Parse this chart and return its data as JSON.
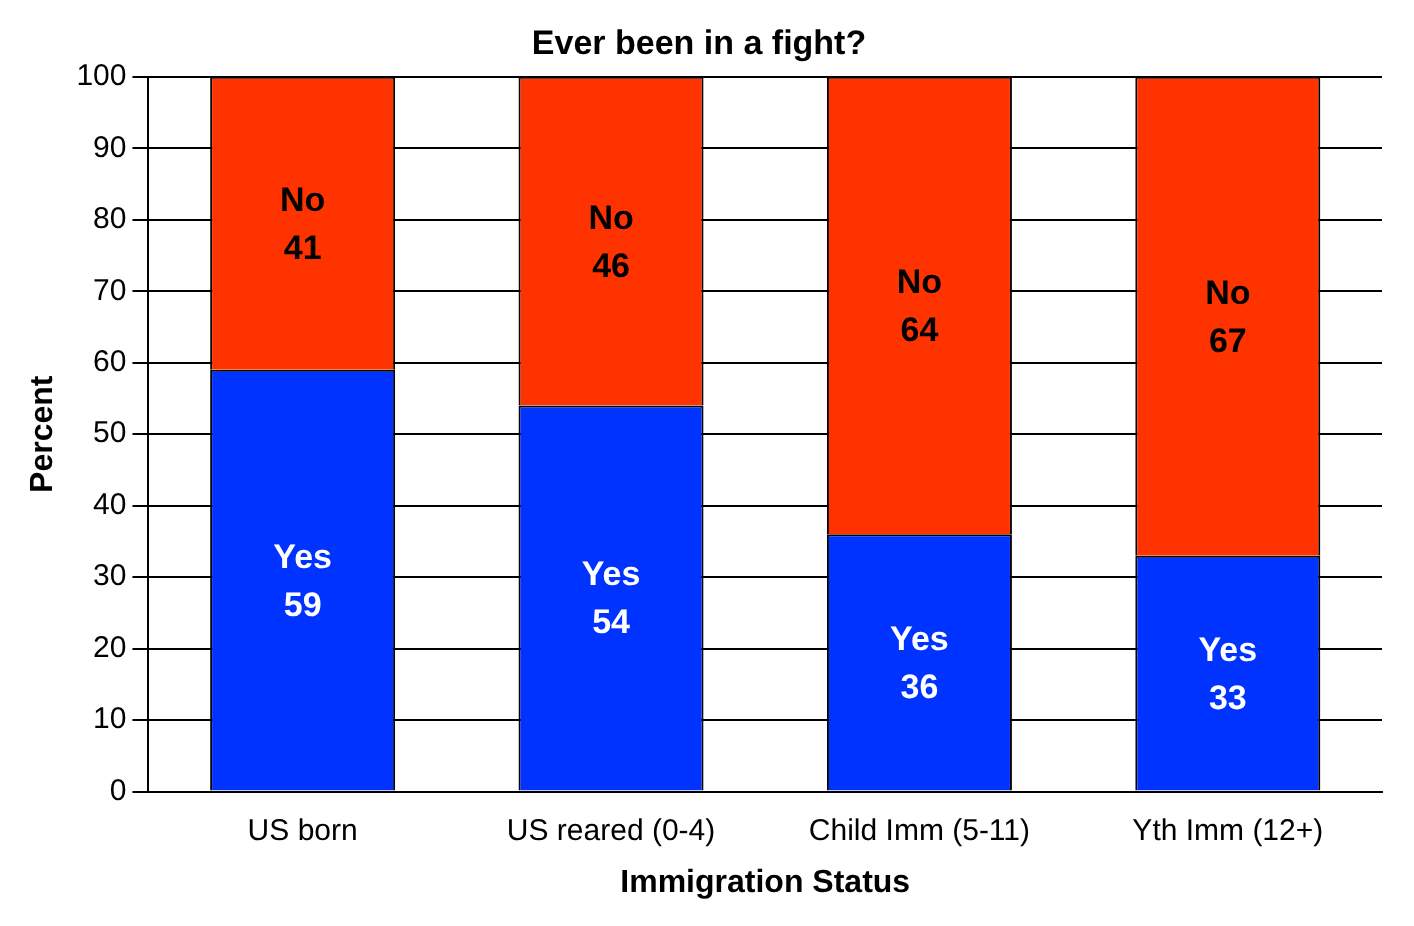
{
  "chart_data": {
    "type": "bar",
    "title": "Ever been in a fight?",
    "xlabel": "Immigration Status",
    "ylabel": "Percent",
    "categories": [
      "US born",
      "US reared (0-4)",
      "Child Imm (5-11)",
      "Yth Imm (12+)"
    ],
    "stacked": true,
    "series": [
      {
        "name": "Yes",
        "color": "#0033ff",
        "values": [
          59,
          54,
          36,
          33
        ],
        "value_labels": [
          "59",
          "54",
          "36",
          "33"
        ]
      },
      {
        "name": "No",
        "color": "#ff3300",
        "values": [
          41,
          46,
          64,
          67
        ],
        "value_labels": [
          "41",
          "46",
          "64",
          "67"
        ]
      }
    ],
    "ylim": [
      0,
      100
    ],
    "yticks": [
      0,
      10,
      20,
      30,
      40,
      50,
      60,
      70,
      80,
      90,
      100
    ],
    "grid": "y",
    "legend": false
  }
}
